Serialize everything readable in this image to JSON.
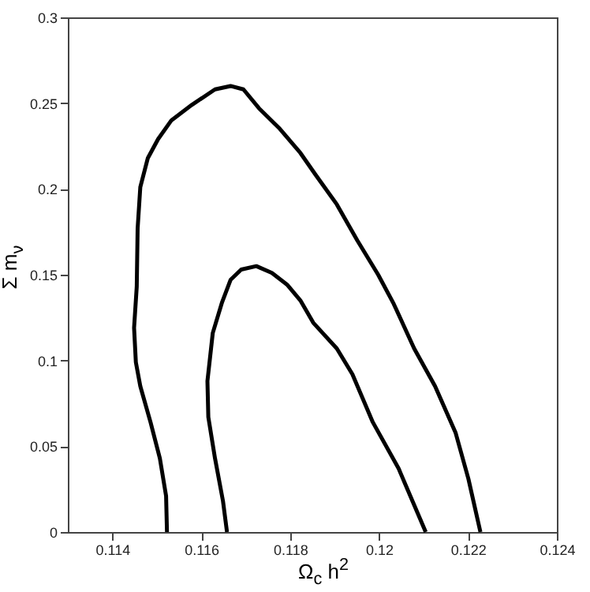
{
  "chart_data": {
    "type": "line",
    "xlabel": "Ω$_{c}$ h$^{2}$",
    "ylabel": "Σ m$_{ν}$",
    "xlim": [
      0.113,
      0.124
    ],
    "xticks": [
      0.114,
      0.116,
      0.118,
      0.12,
      0.122,
      0.124
    ],
    "ylim": [
      0,
      0.3
    ],
    "yticks": [
      0,
      0.05,
      0.1,
      0.15,
      0.2,
      0.25,
      0.3
    ],
    "grid": false,
    "legend": false,
    "marker": "none",
    "line_style": "solid",
    "series": [
      {
        "color": "#000000",
        "x": [
          0.11523,
          0.11521,
          0.11507,
          0.11486,
          0.11463,
          0.11453,
          0.11449,
          0.11455,
          0.11457,
          0.11463,
          0.1148,
          0.11503,
          0.11533,
          0.11579,
          0.11631,
          0.11666,
          0.11695,
          0.1173,
          0.11777,
          0.11823,
          0.11858,
          0.11905,
          0.11951,
          0.11998,
          0.12033,
          0.12079,
          0.12126,
          0.12172,
          0.12201,
          0.12228
        ],
        "values": [
          0,
          0.021,
          0.043,
          0.064,
          0.085,
          0.099,
          0.119,
          0.143,
          0.177,
          0.201,
          0.218,
          0.229,
          0.24,
          0.249,
          0.258,
          0.26,
          0.258,
          0.247,
          0.235,
          0.221,
          0.208,
          0.191,
          0.17,
          0.15,
          0.133,
          0.107,
          0.085,
          0.058,
          0.031,
          0
        ]
      },
      {
        "color": "#000000",
        "x": [
          0.11658,
          0.11649,
          0.11631,
          0.11616,
          0.11614,
          0.11626,
          0.11647,
          0.11666,
          0.1169,
          0.11724,
          0.11759,
          0.11794,
          0.11823,
          0.11852,
          0.11905,
          0.1194,
          0.11986,
          0.12044,
          0.12105
        ],
        "values": [
          0,
          0.018,
          0.043,
          0.067,
          0.088,
          0.116,
          0.134,
          0.147,
          0.153,
          0.155,
          0.151,
          0.144,
          0.135,
          0.122,
          0.107,
          0.092,
          0.064,
          0.037,
          0
        ]
      }
    ]
  }
}
